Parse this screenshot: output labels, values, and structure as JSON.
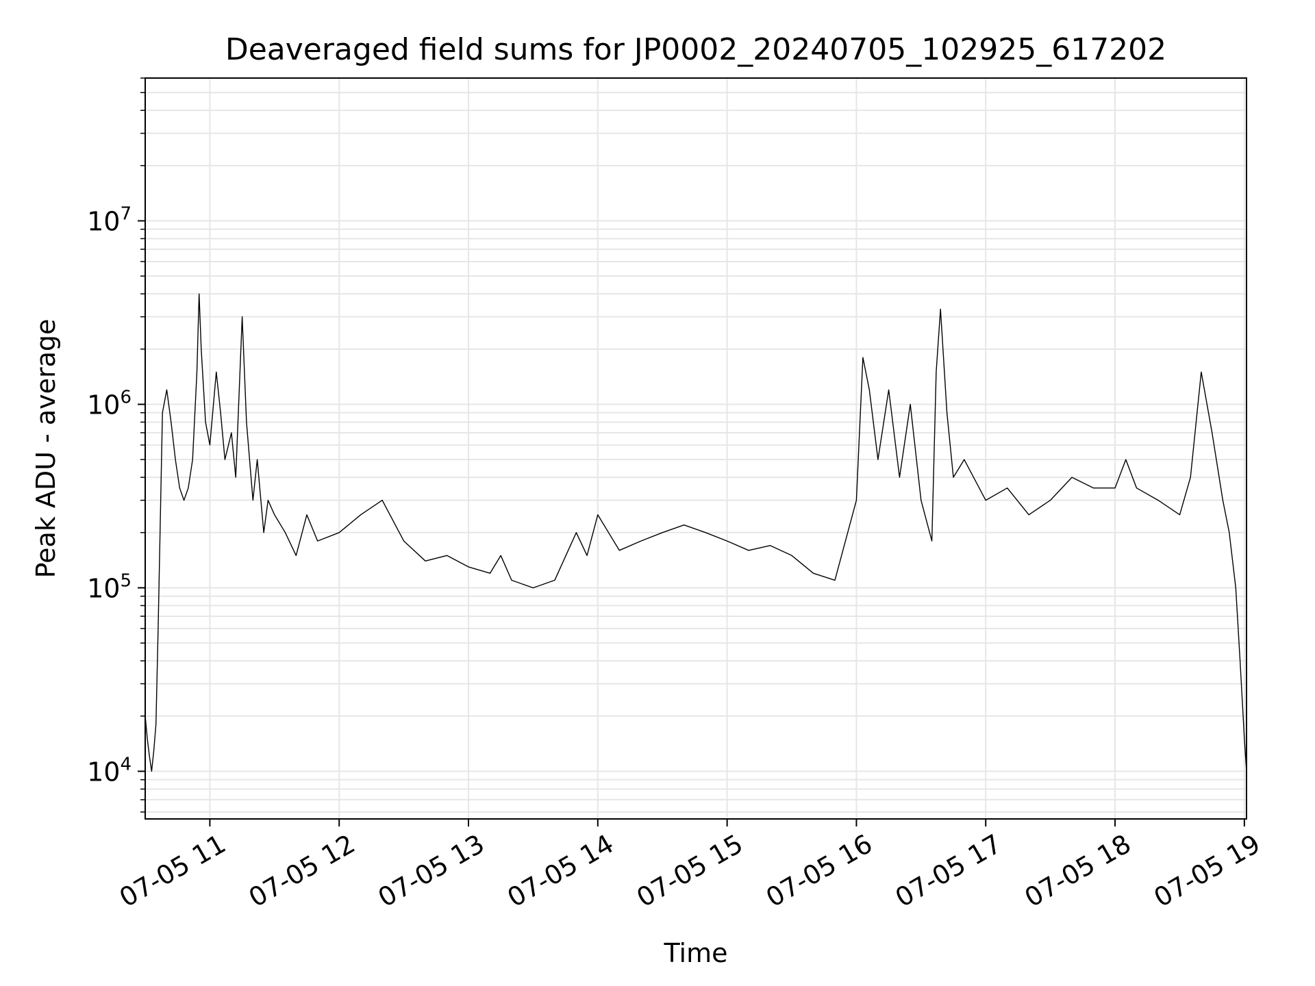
{
  "chart_data": {
    "type": "line",
    "title": "Deaveraged field sums for JP0002_20240705_102925_617202",
    "xlabel": "Time",
    "ylabel": "Peak ADU - average",
    "yscale": "log",
    "ylim": [
      5500,
      60000000
    ],
    "xlim": [
      "07-05 10:30",
      "07-05 19:01"
    ],
    "grid": true,
    "series_color": "#000000",
    "grid_color": "#e6e6e6",
    "x_ticks": [
      {
        "value": "07-05 11:00",
        "label": "07-05 11"
      },
      {
        "value": "07-05 12:00",
        "label": "07-05 12"
      },
      {
        "value": "07-05 13:00",
        "label": "07-05 13"
      },
      {
        "value": "07-05 14:00",
        "label": "07-05 14"
      },
      {
        "value": "07-05 15:00",
        "label": "07-05 15"
      },
      {
        "value": "07-05 16:00",
        "label": "07-05 16"
      },
      {
        "value": "07-05 17:00",
        "label": "07-05 17"
      },
      {
        "value": "07-05 18:00",
        "label": "07-05 18"
      },
      {
        "value": "07-05 19:00",
        "label": "07-05 19"
      }
    ],
    "y_ticks": [
      {
        "value": 10000,
        "base": "10",
        "exp": "4"
      },
      {
        "value": 100000,
        "base": "10",
        "exp": "5"
      },
      {
        "value": 1000000,
        "base": "10",
        "exp": "6"
      },
      {
        "value": 10000000,
        "base": "10",
        "exp": "7"
      }
    ],
    "series": [
      {
        "x": [
          "07-05 10:30",
          "07-05 10:31",
          "07-05 10:32",
          "07-05 10:33",
          "07-05 10:34",
          "07-05 10:35",
          "07-05 10:36",
          "07-05 10:38",
          "07-05 10:40",
          "07-05 10:42",
          "07-05 10:44",
          "07-05 10:46",
          "07-05 10:48",
          "07-05 10:50",
          "07-05 10:52",
          "07-05 10:54",
          "07-05 10:55",
          "07-05 10:56",
          "07-05 10:58",
          "07-05 11:00",
          "07-05 11:03",
          "07-05 11:05",
          "07-05 11:07",
          "07-05 11:10",
          "07-05 11:12",
          "07-05 11:15",
          "07-05 11:17",
          "07-05 11:20",
          "07-05 11:22",
          "07-05 11:25",
          "07-05 11:27",
          "07-05 11:30",
          "07-05 11:35",
          "07-05 11:40",
          "07-05 11:45",
          "07-05 11:50",
          "07-05 12:00",
          "07-05 12:10",
          "07-05 12:20",
          "07-05 12:30",
          "07-05 12:40",
          "07-05 12:50",
          "07-05 13:00",
          "07-05 13:10",
          "07-05 13:15",
          "07-05 13:20",
          "07-05 13:30",
          "07-05 13:40",
          "07-05 13:50",
          "07-05 13:55",
          "07-05 14:00",
          "07-05 14:10",
          "07-05 14:20",
          "07-05 14:30",
          "07-05 14:40",
          "07-05 14:50",
          "07-05 15:00",
          "07-05 15:10",
          "07-05 15:20",
          "07-05 15:30",
          "07-05 15:40",
          "07-05 15:50",
          "07-05 16:00",
          "07-05 16:03",
          "07-05 16:06",
          "07-05 16:10",
          "07-05 16:15",
          "07-05 16:20",
          "07-05 16:25",
          "07-05 16:30",
          "07-05 16:35",
          "07-05 16:37",
          "07-05 16:39",
          "07-05 16:42",
          "07-05 16:45",
          "07-05 16:50",
          "07-05 17:00",
          "07-05 17:10",
          "07-05 17:20",
          "07-05 17:30",
          "07-05 17:40",
          "07-05 17:50",
          "07-05 18:00",
          "07-05 18:05",
          "07-05 18:10",
          "07-05 18:20",
          "07-05 18:30",
          "07-05 18:35",
          "07-05 18:40",
          "07-05 18:45",
          "07-05 18:50",
          "07-05 18:53",
          "07-05 18:56",
          "07-05 18:58",
          "07-05 19:00",
          "07-05 19:01"
        ],
        "y": [
          20000,
          15000,
          12000,
          10000,
          13000,
          18000,
          60000,
          900000,
          1200000,
          800000,
          500000,
          350000,
          300000,
          350000,
          500000,
          1500000,
          4000000,
          2000000,
          800000,
          600000,
          1500000,
          900000,
          500000,
          700000,
          400000,
          3000000,
          800000,
          300000,
          500000,
          200000,
          300000,
          250000,
          200000,
          150000,
          250000,
          180000,
          200000,
          250000,
          300000,
          180000,
          140000,
          150000,
          130000,
          120000,
          150000,
          110000,
          100000,
          110000,
          200000,
          150000,
          250000,
          160000,
          180000,
          200000,
          220000,
          200000,
          180000,
          160000,
          170000,
          150000,
          120000,
          110000,
          300000,
          1800000,
          1200000,
          500000,
          1200000,
          400000,
          1000000,
          300000,
          180000,
          1500000,
          3300000,
          900000,
          400000,
          500000,
          300000,
          350000,
          250000,
          300000,
          400000,
          350000,
          350000,
          500000,
          350000,
          300000,
          250000,
          400000,
          1500000,
          700000,
          300000,
          200000,
          100000,
          40000,
          15000,
          10000
        ]
      }
    ]
  }
}
